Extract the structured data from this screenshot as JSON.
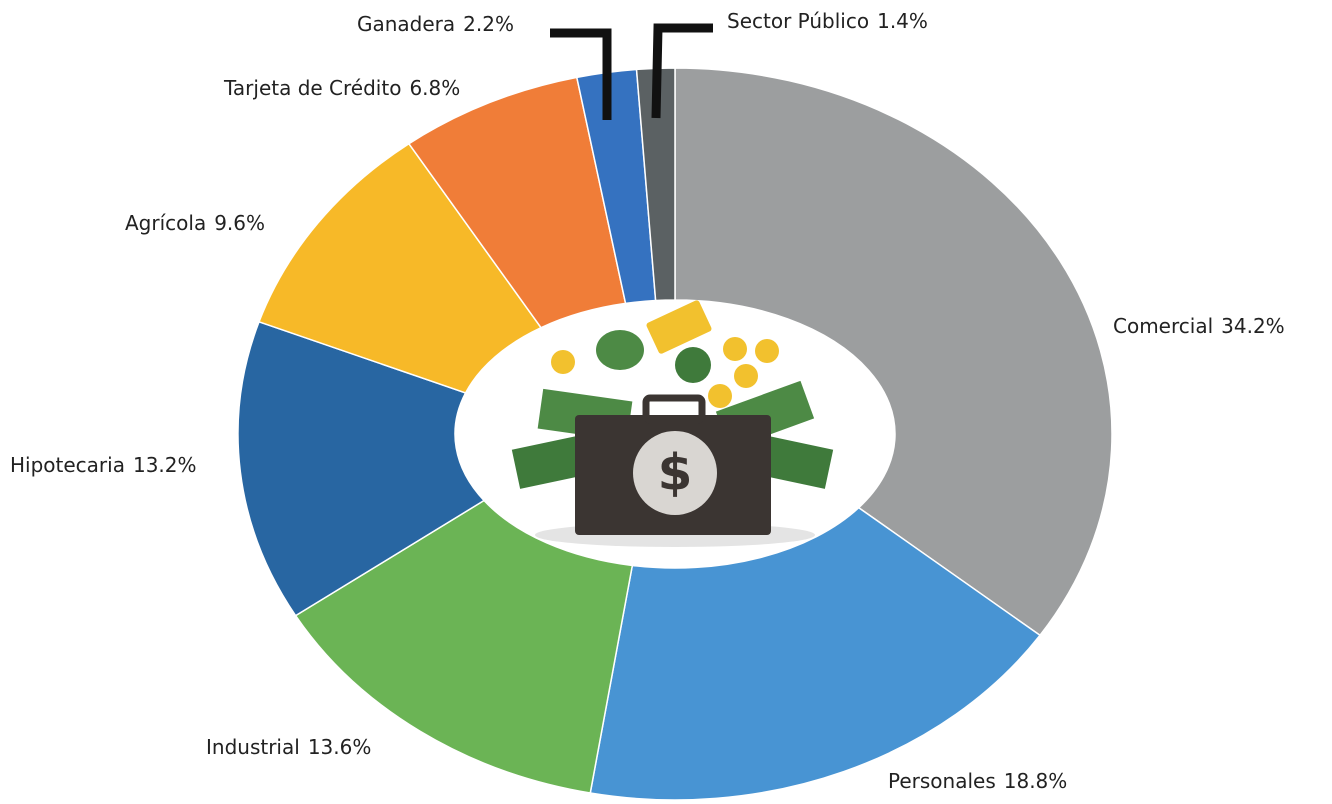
{
  "chart_data": {
    "type": "donut",
    "categories": [
      "Comercial",
      "Personales",
      "Industrial",
      "Hipotecaria",
      "Agrícola",
      "Tarjeta de Crédito",
      "Ganadera",
      "Sector Público"
    ],
    "values": [
      34.2,
      18.8,
      13.6,
      13.2,
      9.6,
      6.8,
      2.2,
      1.4
    ],
    "value_labels": [
      "34.2%",
      "18.8%",
      "13.6%",
      "13.2%",
      "9.6%",
      "6.8%",
      "2.2%",
      "1.4%"
    ],
    "colors": [
      "#9c9e9f",
      "#4894d3",
      "#6bb455",
      "#2866a2",
      "#f7b928",
      "#f07d38",
      "#3572c0",
      "#5b6163"
    ]
  }
}
